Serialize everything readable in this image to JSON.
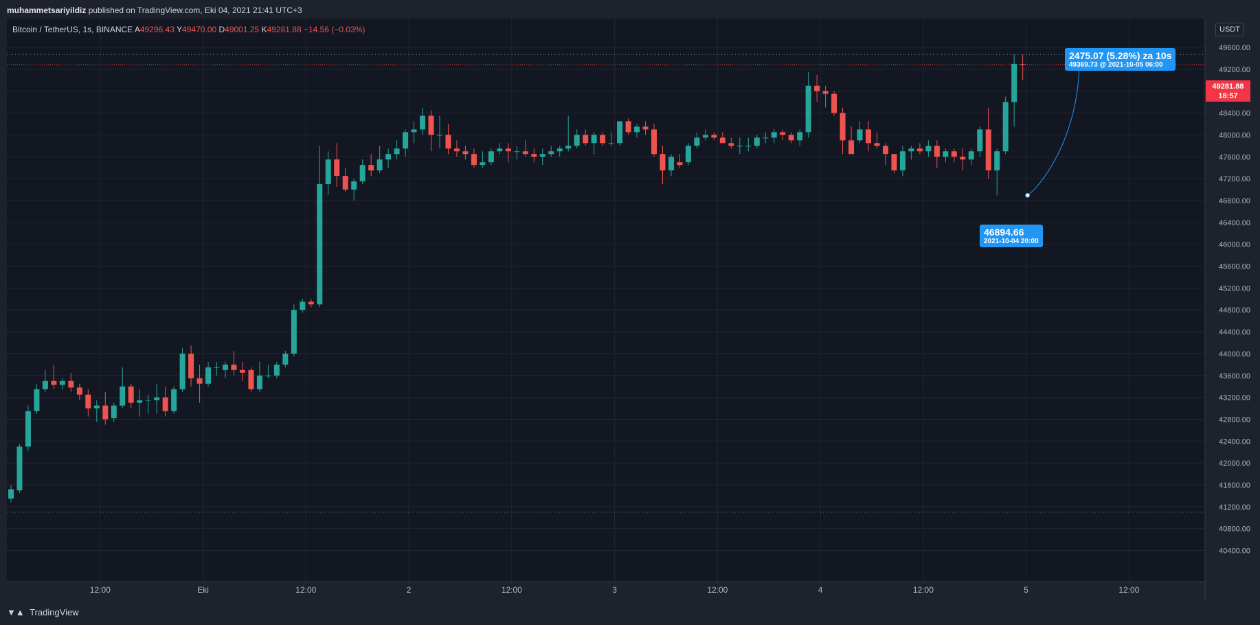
{
  "header": {
    "author": "muhammetsariyildiz",
    "published_text": " published on TradingView.com, Eki 04, 2021 21:41 UTC+3"
  },
  "symbol": {
    "name": "Bitcoin / TetherUS, 1s, BINANCE",
    "open_label": "A",
    "open": "49296.43",
    "high_label": "Y",
    "high": "49470.00",
    "low_label": "D",
    "low": "49001.25",
    "close_label": "K",
    "close": "49281.88",
    "change": "−14.56 (−0.03%)"
  },
  "currency_button": "USDT",
  "current_price": {
    "price": "49281.88",
    "countdown": "18:57"
  },
  "annotations": {
    "high_callout": {
      "text": "2475.07 (5.28%) za 10s",
      "detail": "49369.73 @ 2021-10-05  06:00"
    },
    "low_callout": {
      "text": "46894.66",
      "detail": "2021-10-04 20:00"
    }
  },
  "footer": {
    "brand": "TradingView"
  },
  "colors": {
    "up": "#26a69a",
    "down": "#ef5350",
    "background": "#131722",
    "grid": "#222631",
    "accent": "#2196f3"
  },
  "chart_data": {
    "type": "candlestick",
    "interval": "1h",
    "y_ticks": [
      40400,
      40800,
      41200,
      41600,
      42000,
      42400,
      42800,
      43200,
      43600,
      44000,
      44400,
      44800,
      45200,
      45600,
      46000,
      46400,
      46800,
      47200,
      47600,
      48000,
      48400,
      48800,
      49200,
      49600
    ],
    "ylim": [
      40200,
      50200
    ],
    "x_ticks": [
      {
        "label": "12:00",
        "i": 10.4
      },
      {
        "label": "Eki",
        "i": 22.4
      },
      {
        "label": "12:00",
        "i": 34.4
      },
      {
        "label": "2",
        "i": 46.4
      },
      {
        "label": "12:00",
        "i": 58.4
      },
      {
        "label": "3",
        "i": 70.4
      },
      {
        "label": "12:00",
        "i": 82.4
      },
      {
        "label": "4",
        "i": 94.4
      },
      {
        "label": "12:00",
        "i": 106.4
      },
      {
        "label": "5",
        "i": 118.4
      },
      {
        "label": "12:00",
        "i": 130.4
      }
    ],
    "reference_lines": [
      49470,
      41100
    ],
    "candles": [
      {
        "o": 41350,
        "h": 41600,
        "l": 41280,
        "c": 41520
      },
      {
        "o": 41500,
        "h": 42350,
        "l": 41450,
        "c": 42300
      },
      {
        "o": 42300,
        "h": 43050,
        "l": 42220,
        "c": 42950
      },
      {
        "o": 42950,
        "h": 43450,
        "l": 42900,
        "c": 43350
      },
      {
        "o": 43350,
        "h": 43700,
        "l": 43300,
        "c": 43500
      },
      {
        "o": 43500,
        "h": 43800,
        "l": 43350,
        "c": 43430
      },
      {
        "o": 43430,
        "h": 43550,
        "l": 43350,
        "c": 43500
      },
      {
        "o": 43500,
        "h": 43650,
        "l": 43300,
        "c": 43380
      },
      {
        "o": 43380,
        "h": 43450,
        "l": 43150,
        "c": 43250
      },
      {
        "o": 43250,
        "h": 43350,
        "l": 42850,
        "c": 43000
      },
      {
        "o": 43000,
        "h": 43150,
        "l": 42750,
        "c": 43050
      },
      {
        "o": 43050,
        "h": 43300,
        "l": 42700,
        "c": 42800
      },
      {
        "o": 42820,
        "h": 43100,
        "l": 42750,
        "c": 43050
      },
      {
        "o": 43050,
        "h": 43750,
        "l": 43000,
        "c": 43400
      },
      {
        "o": 43400,
        "h": 43450,
        "l": 43000,
        "c": 43100
      },
      {
        "o": 43100,
        "h": 43350,
        "l": 42850,
        "c": 43150
      },
      {
        "o": 43150,
        "h": 43250,
        "l": 42900,
        "c": 43150
      },
      {
        "o": 43150,
        "h": 43450,
        "l": 42900,
        "c": 43200
      },
      {
        "o": 43200,
        "h": 43400,
        "l": 42850,
        "c": 42950
      },
      {
        "o": 42950,
        "h": 43400,
        "l": 42900,
        "c": 43350
      },
      {
        "o": 43350,
        "h": 44100,
        "l": 43300,
        "c": 44000
      },
      {
        "o": 44000,
        "h": 44150,
        "l": 43400,
        "c": 43550
      },
      {
        "o": 43550,
        "h": 43800,
        "l": 43100,
        "c": 43450
      },
      {
        "o": 43450,
        "h": 43850,
        "l": 43400,
        "c": 43750
      },
      {
        "o": 43750,
        "h": 43850,
        "l": 43600,
        "c": 43750
      },
      {
        "o": 43700,
        "h": 43850,
        "l": 43550,
        "c": 43800
      },
      {
        "o": 43800,
        "h": 44050,
        "l": 43600,
        "c": 43700
      },
      {
        "o": 43700,
        "h": 43850,
        "l": 43500,
        "c": 43650
      },
      {
        "o": 43700,
        "h": 43750,
        "l": 43300,
        "c": 43350
      },
      {
        "o": 43350,
        "h": 43850,
        "l": 43300,
        "c": 43600
      },
      {
        "o": 43600,
        "h": 43800,
        "l": 43550,
        "c": 43600
      },
      {
        "o": 43600,
        "h": 43850,
        "l": 43550,
        "c": 43800
      },
      {
        "o": 43800,
        "h": 44050,
        "l": 43750,
        "c": 44000
      },
      {
        "o": 44000,
        "h": 44900,
        "l": 43950,
        "c": 44800
      },
      {
        "o": 44800,
        "h": 45000,
        "l": 44750,
        "c": 44950
      },
      {
        "o": 44950,
        "h": 45000,
        "l": 44850,
        "c": 44900
      },
      {
        "o": 44900,
        "h": 47800,
        "l": 44850,
        "c": 47100
      },
      {
        "o": 47100,
        "h": 47700,
        "l": 46900,
        "c": 47550
      },
      {
        "o": 47550,
        "h": 47850,
        "l": 47050,
        "c": 47250
      },
      {
        "o": 47250,
        "h": 47400,
        "l": 46950,
        "c": 47000
      },
      {
        "o": 47000,
        "h": 47200,
        "l": 46800,
        "c": 47150
      },
      {
        "o": 47150,
        "h": 47550,
        "l": 47100,
        "c": 47450
      },
      {
        "o": 47450,
        "h": 47650,
        "l": 47250,
        "c": 47350
      },
      {
        "o": 47350,
        "h": 47800,
        "l": 47300,
        "c": 47550
      },
      {
        "o": 47550,
        "h": 47750,
        "l": 47400,
        "c": 47650
      },
      {
        "o": 47650,
        "h": 47900,
        "l": 47550,
        "c": 47750
      },
      {
        "o": 47750,
        "h": 48100,
        "l": 47600,
        "c": 48050
      },
      {
        "o": 48050,
        "h": 48250,
        "l": 47850,
        "c": 48100
      },
      {
        "o": 48100,
        "h": 48500,
        "l": 48000,
        "c": 48350
      },
      {
        "o": 48350,
        "h": 48450,
        "l": 47700,
        "c": 48000
      },
      {
        "o": 48000,
        "h": 48350,
        "l": 47750,
        "c": 48000
      },
      {
        "o": 48000,
        "h": 48200,
        "l": 47650,
        "c": 47750
      },
      {
        "o": 47750,
        "h": 47900,
        "l": 47600,
        "c": 47700
      },
      {
        "o": 47700,
        "h": 47800,
        "l": 47550,
        "c": 47650
      },
      {
        "o": 47650,
        "h": 47750,
        "l": 47400,
        "c": 47450
      },
      {
        "o": 47450,
        "h": 47700,
        "l": 47400,
        "c": 47500
      },
      {
        "o": 47500,
        "h": 47750,
        "l": 47450,
        "c": 47700
      },
      {
        "o": 47700,
        "h": 47850,
        "l": 47650,
        "c": 47750
      },
      {
        "o": 47750,
        "h": 47850,
        "l": 47500,
        "c": 47700
      },
      {
        "o": 47700,
        "h": 47800,
        "l": 47550,
        "c": 47700
      },
      {
        "o": 47700,
        "h": 47900,
        "l": 47600,
        "c": 47650
      },
      {
        "o": 47650,
        "h": 47750,
        "l": 47500,
        "c": 47600
      },
      {
        "o": 47600,
        "h": 47750,
        "l": 47450,
        "c": 47650
      },
      {
        "o": 47650,
        "h": 47800,
        "l": 47600,
        "c": 47700
      },
      {
        "o": 47700,
        "h": 47800,
        "l": 47600,
        "c": 47750
      },
      {
        "o": 47750,
        "h": 48350,
        "l": 47700,
        "c": 47800
      },
      {
        "o": 47800,
        "h": 48100,
        "l": 47750,
        "c": 48000
      },
      {
        "o": 48000,
        "h": 48100,
        "l": 47800,
        "c": 47850
      },
      {
        "o": 47850,
        "h": 48050,
        "l": 47650,
        "c": 48000
      },
      {
        "o": 48000,
        "h": 48050,
        "l": 47800,
        "c": 47850
      },
      {
        "o": 47850,
        "h": 48050,
        "l": 47800,
        "c": 47850
      },
      {
        "o": 47850,
        "h": 48250,
        "l": 47800,
        "c": 48250
      },
      {
        "o": 48250,
        "h": 48300,
        "l": 48000,
        "c": 48050
      },
      {
        "o": 48050,
        "h": 48200,
        "l": 47950,
        "c": 48150
      },
      {
        "o": 48150,
        "h": 48250,
        "l": 48000,
        "c": 48100
      },
      {
        "o": 48100,
        "h": 48200,
        "l": 47600,
        "c": 47650
      },
      {
        "o": 47650,
        "h": 47800,
        "l": 47100,
        "c": 47350
      },
      {
        "o": 47350,
        "h": 47650,
        "l": 47250,
        "c": 47600
      },
      {
        "o": 47500,
        "h": 47650,
        "l": 47400,
        "c": 47450
      },
      {
        "o": 47500,
        "h": 47850,
        "l": 47450,
        "c": 47800
      },
      {
        "o": 47800,
        "h": 48050,
        "l": 47750,
        "c": 47950
      },
      {
        "o": 47950,
        "h": 48100,
        "l": 47900,
        "c": 48000
      },
      {
        "o": 48000,
        "h": 48050,
        "l": 47900,
        "c": 47950
      },
      {
        "o": 47950,
        "h": 48050,
        "l": 47850,
        "c": 47850
      },
      {
        "o": 47850,
        "h": 47950,
        "l": 47750,
        "c": 47800
      },
      {
        "o": 47800,
        "h": 47950,
        "l": 47650,
        "c": 47800
      },
      {
        "o": 47800,
        "h": 47950,
        "l": 47700,
        "c": 47800
      },
      {
        "o": 47800,
        "h": 48000,
        "l": 47750,
        "c": 47950
      },
      {
        "o": 47950,
        "h": 48050,
        "l": 47850,
        "c": 47950
      },
      {
        "o": 47950,
        "h": 48100,
        "l": 47850,
        "c": 48050
      },
      {
        "o": 48050,
        "h": 48100,
        "l": 47900,
        "c": 48000
      },
      {
        "o": 48000,
        "h": 48050,
        "l": 47850,
        "c": 47900
      },
      {
        "o": 47900,
        "h": 48100,
        "l": 47800,
        "c": 48050
      },
      {
        "o": 48050,
        "h": 49150,
        "l": 47950,
        "c": 48900
      },
      {
        "o": 48900,
        "h": 49100,
        "l": 48600,
        "c": 48800
      },
      {
        "o": 48800,
        "h": 48900,
        "l": 48500,
        "c": 48750
      },
      {
        "o": 48750,
        "h": 48800,
        "l": 48350,
        "c": 48400
      },
      {
        "o": 48400,
        "h": 48500,
        "l": 47650,
        "c": 47900
      },
      {
        "o": 47900,
        "h": 48150,
        "l": 47700,
        "c": 47650
      },
      {
        "o": 47900,
        "h": 48250,
        "l": 47850,
        "c": 48100
      },
      {
        "o": 48100,
        "h": 48250,
        "l": 47700,
        "c": 47850
      },
      {
        "o": 47850,
        "h": 48050,
        "l": 47750,
        "c": 47800
      },
      {
        "o": 47800,
        "h": 47850,
        "l": 47450,
        "c": 47650
      },
      {
        "o": 47650,
        "h": 47650,
        "l": 47300,
        "c": 47350
      },
      {
        "o": 47350,
        "h": 47800,
        "l": 47250,
        "c": 47700
      },
      {
        "o": 47700,
        "h": 47800,
        "l": 47550,
        "c": 47750
      },
      {
        "o": 47750,
        "h": 47850,
        "l": 47650,
        "c": 47700
      },
      {
        "o": 47700,
        "h": 47900,
        "l": 47600,
        "c": 47800
      },
      {
        "o": 47800,
        "h": 47900,
        "l": 47400,
        "c": 47600
      },
      {
        "o": 47600,
        "h": 47750,
        "l": 47500,
        "c": 47700
      },
      {
        "o": 47700,
        "h": 47750,
        "l": 47500,
        "c": 47600
      },
      {
        "o": 47600,
        "h": 47750,
        "l": 47350,
        "c": 47550
      },
      {
        "o": 47550,
        "h": 47750,
        "l": 47450,
        "c": 47700
      },
      {
        "o": 47700,
        "h": 48150,
        "l": 47600,
        "c": 48100
      },
      {
        "o": 48100,
        "h": 48500,
        "l": 47200,
        "c": 47350
      },
      {
        "o": 47350,
        "h": 47750,
        "l": 46894.66,
        "c": 47700
      },
      {
        "o": 47700,
        "h": 48700,
        "l": 47650,
        "c": 48600
      },
      {
        "o": 48600,
        "h": 49470,
        "l": 48150,
        "c": 49300
      },
      {
        "o": 49296.43,
        "h": 49470,
        "l": 49001.25,
        "c": 49281.88
      }
    ]
  }
}
